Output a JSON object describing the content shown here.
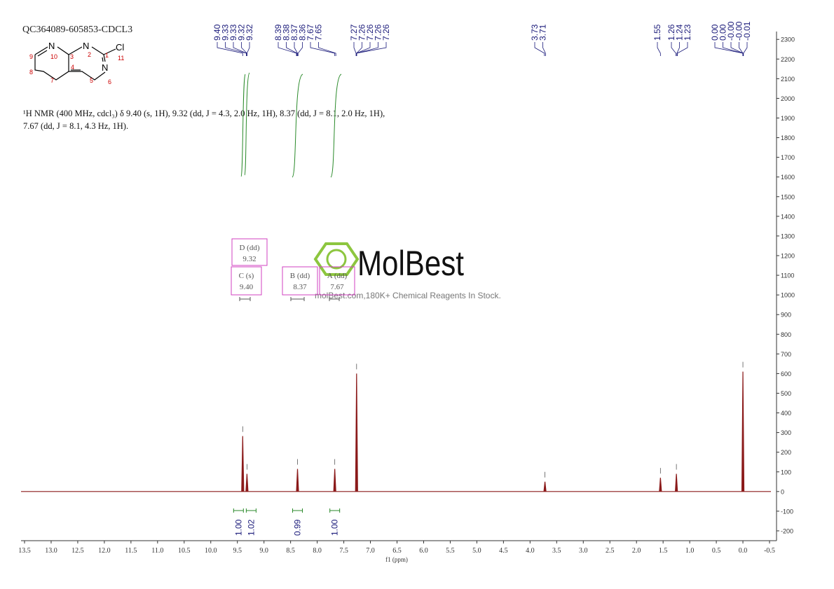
{
  "chart_data": {
    "type": "nmr",
    "title": "QC364089-605853-CDCL3",
    "description": [
      "¹H NMR (400 MHz, cdcl₃) δ 9.40 (s, 1H), 9.32 (dd, J = 4.3, 2.0 Hz, 1H), 8.37 (dd, J = 8.1, 2.0 Hz, 1H),",
      "7.67 (dd, J = 8.1, 4.3 Hz, 1H)."
    ],
    "molecule": {
      "atoms": [
        "N",
        "N",
        "Cl",
        "N"
      ],
      "numbers": [
        "1",
        "2",
        "3",
        "4",
        "5",
        "6",
        "7",
        "8",
        "9",
        "10",
        "11"
      ]
    },
    "peak_labels": [
      [
        "9.40",
        "9.33",
        "9.33",
        "9.32",
        "9.32"
      ],
      [
        "8.39",
        "8.38",
        "8.37",
        "8.36",
        "7.67",
        "7.65"
      ],
      [
        "7.27",
        "7.26",
        "7.26",
        "7.26",
        "7.26"
      ],
      [
        "3.73",
        "3.71"
      ],
      [
        "1.55"
      ],
      [
        "1.26",
        "1.24",
        "1.23"
      ],
      [
        "0.00",
        "0.00",
        "-0.00",
        "-0.00",
        "-0.01"
      ]
    ],
    "multiplets": [
      {
        "name": "D (dd)",
        "shift": "9.32"
      },
      {
        "name": "C (s)",
        "shift": "9.40"
      },
      {
        "name": "B (dd)",
        "shift": "8.37"
      },
      {
        "name": "A (dd)",
        "shift": "7.67"
      }
    ],
    "peaks": {
      "x": [
        9.4,
        9.32,
        8.37,
        7.67,
        7.26,
        3.72,
        1.55,
        1.25,
        0.0
      ],
      "values": [
        282,
        90,
        115,
        115,
        600,
        50,
        70,
        90,
        610
      ]
    },
    "integrals": {
      "x": [
        9.4,
        9.32,
        8.37,
        7.67
      ],
      "values": [
        1.0,
        1.02,
        0.99,
        1.0
      ],
      "value_labels": [
        "1.00",
        "1.02",
        "0.99",
        "1.00"
      ]
    },
    "xlabel": "f1 (ppm)",
    "xlim": [
      13.5,
      -0.5
    ],
    "xticks": [
      13.5,
      {
        "value": 13,
        "label": "13.0"
      },
      12.5,
      {
        "value": 12,
        "label": "12.0"
      },
      11.5,
      {
        "value": 11,
        "label": "11.0"
      },
      10.5,
      {
        "value": 10,
        "label": "10.0"
      },
      9.5,
      {
        "value": 9,
        "label": "9.0"
      },
      8.5,
      {
        "value": 8,
        "label": "8.0"
      },
      7.5,
      {
        "value": 7,
        "label": "7.0"
      },
      6.5,
      {
        "value": 6,
        "label": "6.0"
      },
      5.5,
      {
        "value": 5,
        "label": "5.0"
      },
      4.5,
      {
        "value": 4,
        "label": "4.0"
      },
      3.5,
      {
        "value": 3,
        "label": "3.0"
      },
      2.5,
      {
        "value": 2,
        "label": "2.0"
      },
      1.5,
      {
        "value": 1,
        "label": "1.0"
      },
      0.5,
      {
        "value": 0,
        "label": "0.0"
      },
      -0.5
    ],
    "ylim": [
      -250,
      2340
    ],
    "yticks": [
      -200,
      -100,
      0,
      100,
      200,
      300,
      400,
      500,
      600,
      700,
      800,
      900,
      1000,
      1100,
      1200,
      1300,
      1400,
      1500,
      1600,
      1700,
      1800,
      1900,
      2000,
      2100,
      2200,
      2300
    ],
    "watermark": {
      "brand": "MolBest",
      "tagline": "molBest.com,180K+ Chemical Reagents In Stock."
    }
  }
}
